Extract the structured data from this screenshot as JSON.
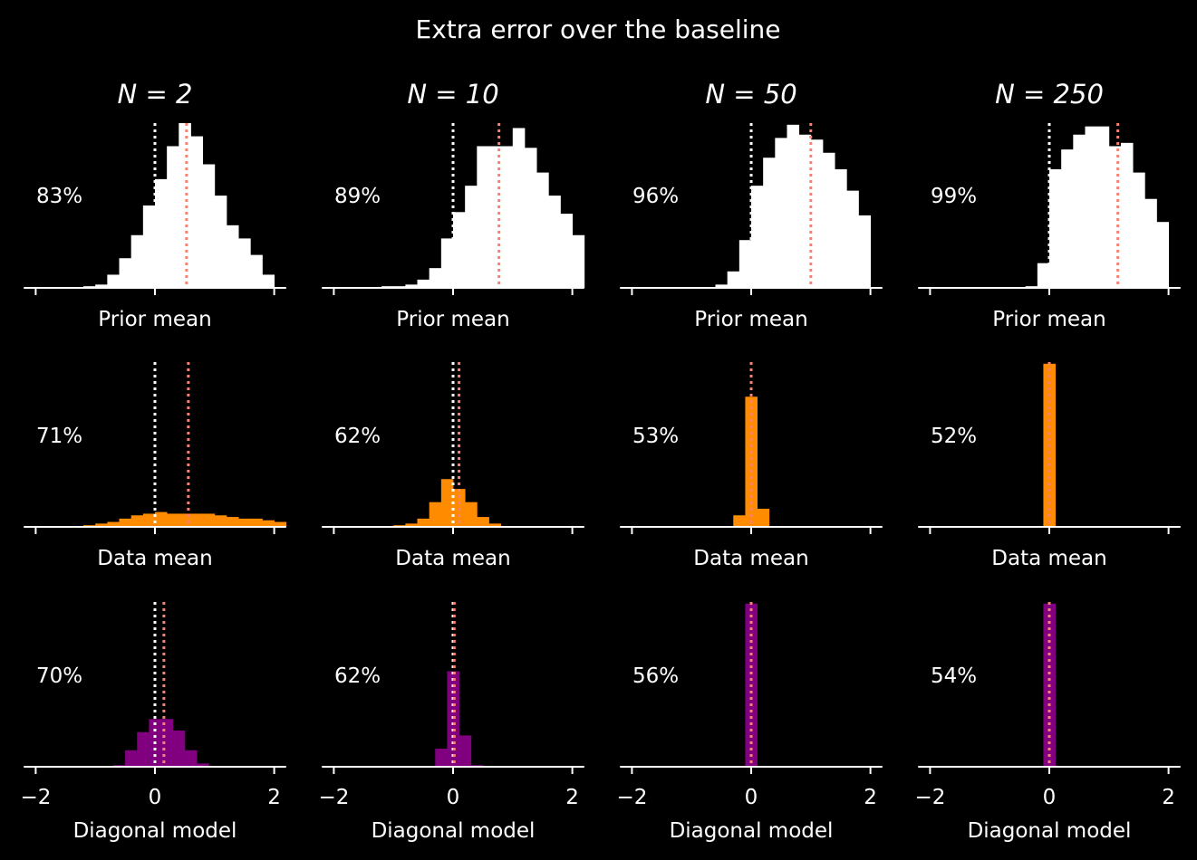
{
  "title": "Extra error over the baseline",
  "column_titles": [
    "N = 2",
    "N = 10",
    "N = 50",
    "N = 250"
  ],
  "row_labels": [
    "Prior mean",
    "Data mean",
    "Diagonal model"
  ],
  "x_ticks": [
    -2,
    0,
    2
  ],
  "x_tick_labels": [
    "−2",
    "0",
    "2"
  ],
  "colors": {
    "background": "#000000",
    "axes": "#ffffff",
    "zero_line": "#ffffff",
    "mean_line": "#fa8072",
    "rows": [
      "#ffffff",
      "#ff8c00",
      "#800080"
    ]
  },
  "chart_data": {
    "type": "histogram-grid",
    "xlim": [
      -2.2,
      2.2
    ],
    "bin_width": 0.2,
    "panels": [
      [
        {
          "pct": "83%",
          "mean": 0.53,
          "start": -1.2,
          "values": [
            0.01,
            0.02,
            0.08,
            0.18,
            0.32,
            0.5,
            0.66,
            0.86,
            1.0,
            0.92,
            0.75,
            0.56,
            0.38,
            0.3,
            0.2,
            0.08
          ]
        },
        {
          "pct": "89%",
          "mean": 0.77,
          "start": -1.2,
          "values": [
            0.01,
            0.01,
            0.02,
            0.05,
            0.12,
            0.3,
            0.46,
            0.62,
            0.86,
            0.86,
            0.86,
            0.97,
            0.85,
            0.7,
            0.56,
            0.45,
            0.32
          ]
        },
        {
          "pct": "96%",
          "mean": 1.0,
          "start": -0.6,
          "values": [
            0.02,
            0.1,
            0.29,
            0.62,
            0.79,
            0.91,
            0.99,
            0.93,
            0.9,
            0.82,
            0.72,
            0.59,
            0.44
          ]
        },
        {
          "pct": "99%",
          "mean": 1.15,
          "start": -0.4,
          "values": [
            0.01,
            0.15,
            0.72,
            0.84,
            0.93,
            0.98,
            0.98,
            0.86,
            0.88,
            0.7,
            0.54,
            0.4
          ]
        }
      ],
      [
        {
          "pct": "71%",
          "mean": 0.56,
          "start": -1.2,
          "values": [
            0.01,
            0.02,
            0.03,
            0.05,
            0.07,
            0.08,
            0.09,
            0.08,
            0.08,
            0.08,
            0.08,
            0.07,
            0.06,
            0.05,
            0.05,
            0.04,
            0.03
          ]
        },
        {
          "pct": "62%",
          "mean": 0.1,
          "start": -1.0,
          "values": [
            0.01,
            0.02,
            0.05,
            0.15,
            0.29,
            0.23,
            0.15,
            0.06,
            0.02
          ]
        },
        {
          "pct": "53%",
          "mean": 0.0,
          "start": -0.3,
          "values": [
            0.07,
            0.79,
            0.11
          ]
        },
        {
          "pct": "52%",
          "mean": 0.0,
          "start": -0.1,
          "values": [
            0.99
          ]
        }
      ],
      [
        {
          "pct": "70%",
          "mean": 0.15,
          "start": -0.7,
          "values": [
            0.01,
            0.1,
            0.21,
            0.29,
            0.29,
            0.22,
            0.1,
            0.02
          ]
        },
        {
          "pct": "62%",
          "mean": 0.02,
          "start": -0.3,
          "values": [
            0.11,
            0.58,
            0.19,
            0.01
          ]
        },
        {
          "pct": "56%",
          "mean": 0.0,
          "start": -0.1,
          "values": [
            0.99
          ]
        },
        {
          "pct": "54%",
          "mean": 0.0,
          "start": -0.1,
          "values": [
            0.99
          ]
        }
      ]
    ]
  }
}
